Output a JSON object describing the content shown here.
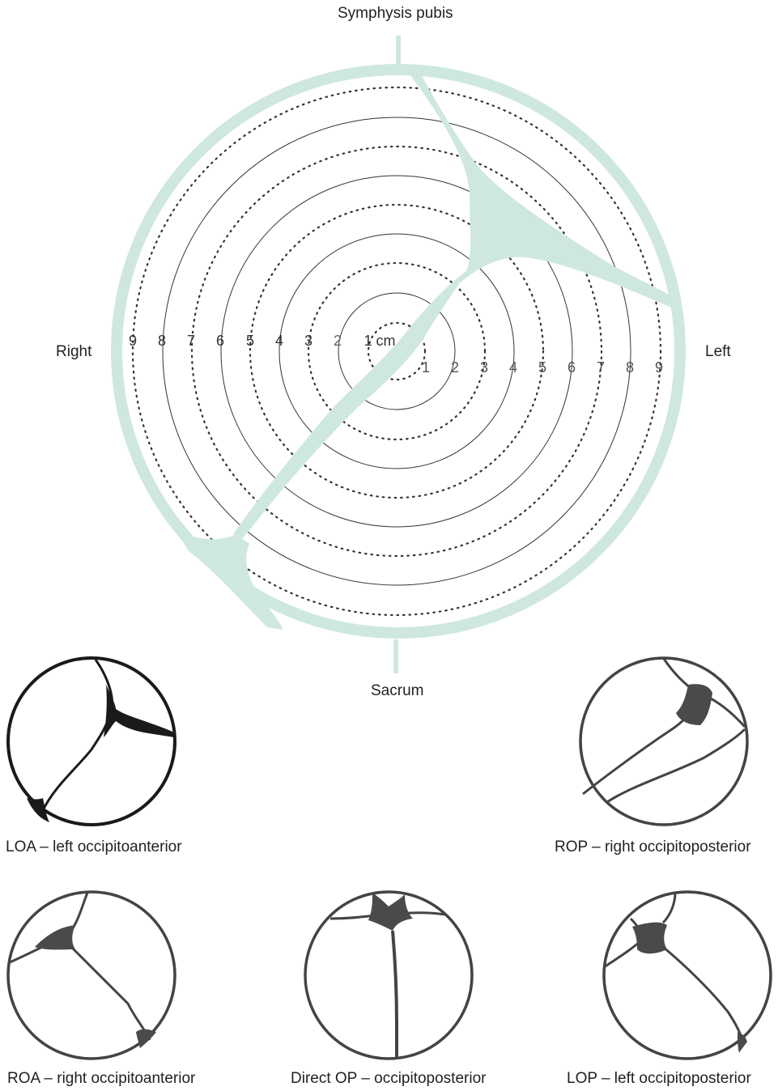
{
  "main_diagram": {
    "top_label": "Symphysis pubis",
    "bottom_label": "Sacrum",
    "left_label": "Right",
    "right_label": "Left",
    "center_label": "1 cm",
    "left_numbers": [
      "9",
      "8",
      "7",
      "6",
      "5",
      "4",
      "3",
      "2"
    ],
    "right_numbers": [
      "1",
      "2",
      "3",
      "4",
      "5",
      "6",
      "7",
      "8",
      "9"
    ]
  },
  "positions": [
    {
      "id": "loa",
      "caption": "LOA – left occipitoanterior"
    },
    {
      "id": "rop",
      "caption": "ROP – right occipitoposterior"
    },
    {
      "id": "roa",
      "caption": "ROA – right occipitoanterior"
    },
    {
      "id": "op",
      "caption": "Direct OP – occipitoposterior"
    },
    {
      "id": "lop",
      "caption": "LOP – left occipitoposterior"
    }
  ],
  "colors": {
    "suture": "#cfe7e1",
    "ring": "#333333",
    "dark_fontanelle": "#1a1a1a",
    "grey_fontanelle": "#4a4a4a"
  }
}
